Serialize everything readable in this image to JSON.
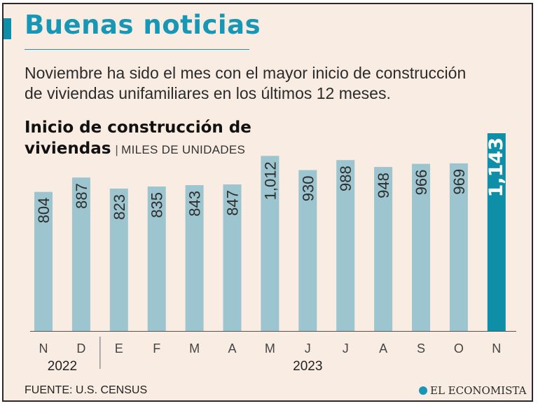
{
  "header": {
    "title": "Buenas noticias",
    "subtitle_line1": "Noviembre ha sido el mes con el mayor inicio de construcción",
    "subtitle_line2": "de viviendas unifamiliares en los últimos 12 meses."
  },
  "chart_data": {
    "type": "bar",
    "title_line1": "Inicio de construcción de",
    "title_line2": "viviendas",
    "unit": "MILES DE UNIDADES",
    "categories": [
      "N",
      "D",
      "E",
      "F",
      "M",
      "A",
      "M",
      "J",
      "J",
      "A",
      "S",
      "O",
      "N"
    ],
    "values": [
      804,
      887,
      823,
      835,
      843,
      847,
      1012,
      930,
      988,
      948,
      966,
      969,
      1143
    ],
    "value_labels": [
      "804",
      "887",
      "823",
      "835",
      "843",
      "847",
      "1,012",
      "930",
      "988",
      "948",
      "966",
      "969",
      "1,143"
    ],
    "years": [
      {
        "label": "2022",
        "span": [
          0,
          1
        ]
      },
      {
        "label": "2023",
        "span": [
          2,
          12
        ]
      }
    ],
    "highlight_index": 12,
    "colors": {
      "bar": "#9cc5cf",
      "highlight": "#0f8ea8",
      "label": "#2d2d2d",
      "highlight_label": "#ffffff"
    },
    "ylim": [
      0,
      1150
    ]
  },
  "footer": {
    "source": "FUENTE: U.S. CENSUS",
    "logo_text": "EL ECONOMISTA",
    "logo_icon": "el-economista-logo-icon"
  }
}
